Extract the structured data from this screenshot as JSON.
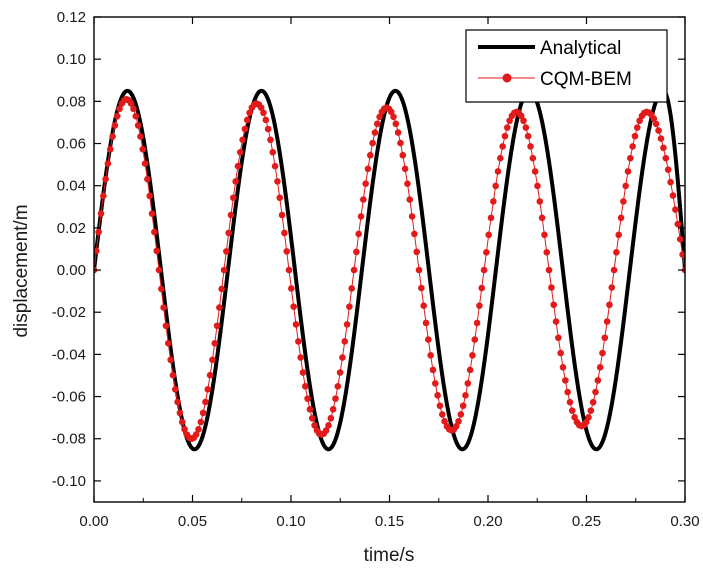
{
  "chart_data": {
    "type": "line",
    "title": "",
    "xlabel": "time/s",
    "ylabel": "displacement/m",
    "xlim": [
      0.0,
      0.3
    ],
    "ylim": [
      -0.11,
      0.12
    ],
    "x_ticks": [
      0.0,
      0.05,
      0.1,
      0.15,
      0.2,
      0.25,
      0.3
    ],
    "x_tick_labels": [
      "0.00",
      "0.05",
      "0.10",
      "0.15",
      "0.20",
      "0.25",
      "0.30"
    ],
    "y_ticks": [
      -0.1,
      -0.08,
      -0.06,
      -0.04,
      -0.02,
      0.0,
      0.02,
      0.04,
      0.06,
      0.08,
      0.1,
      0.12
    ],
    "y_tick_labels": [
      "-0.10",
      "-0.08",
      "-0.06",
      "-0.04",
      "-0.02",
      "0.00",
      "0.02",
      "0.04",
      "0.06",
      "0.08",
      "0.10",
      "0.12"
    ],
    "grid": false,
    "legend_position": "top-right",
    "series": [
      {
        "name": "Analytical",
        "style": "line",
        "color": "#000000",
        "x": [
          0.0,
          0.017,
          0.034,
          0.051,
          0.068,
          0.085,
          0.102,
          0.119,
          0.136,
          0.153,
          0.17,
          0.187,
          0.204,
          0.221,
          0.238,
          0.255,
          0.272,
          0.289,
          0.3
        ],
        "y": [
          0.0,
          0.085,
          0.0,
          -0.085,
          0.0,
          0.085,
          0.0,
          -0.085,
          0.0,
          0.085,
          0.0,
          -0.085,
          0.0,
          0.085,
          0.0,
          -0.085,
          0.0,
          0.085,
          0.059
        ]
      },
      {
        "name": "CQM-BEM",
        "style": "line-markers",
        "color": "#e31a1a",
        "x": [
          0.0,
          0.0165,
          0.033,
          0.0495,
          0.066,
          0.0825,
          0.099,
          0.1155,
          0.132,
          0.1485,
          0.165,
          0.1815,
          0.198,
          0.2145,
          0.231,
          0.2475,
          0.264,
          0.2805,
          0.3
        ],
        "y": [
          0.0,
          0.081,
          0.0,
          -0.08,
          0.0,
          0.079,
          0.0,
          -0.078,
          0.0,
          0.077,
          0.0,
          -0.076,
          0.0,
          0.075,
          0.0,
          -0.074,
          0.0,
          0.075,
          0.027
        ]
      }
    ]
  }
}
